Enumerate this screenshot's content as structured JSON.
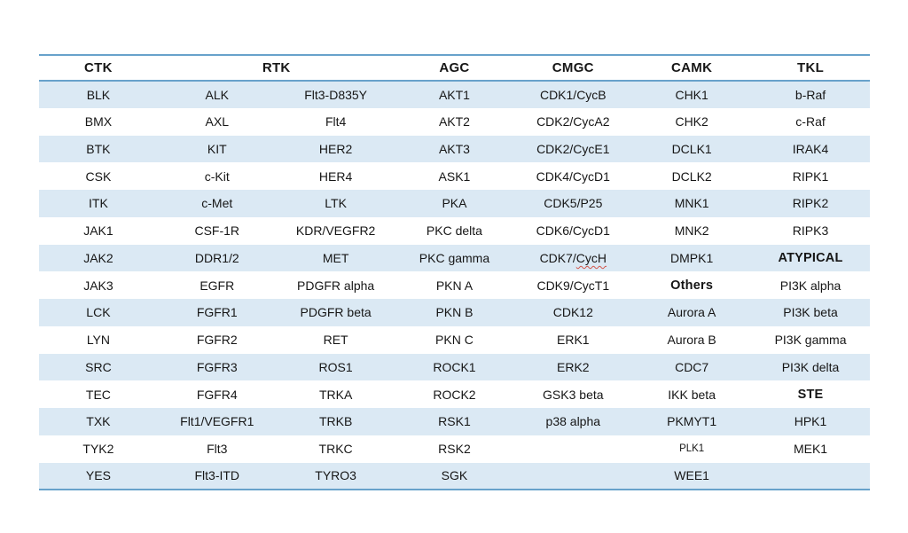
{
  "colors": {
    "background": "#FFFFFF",
    "row_stripe": "#DBE9F4",
    "rule_line": "#68A2CB",
    "text": "#161616",
    "spellcheck_red": "#D3554A"
  },
  "table": {
    "headers": [
      {
        "label": "CTK",
        "span": 1
      },
      {
        "label": "RTK",
        "span": 2
      },
      {
        "label": "AGC",
        "span": 1
      },
      {
        "label": "CMGC",
        "span": 1
      },
      {
        "label": "CAMK",
        "span": 1
      },
      {
        "label": "TKL",
        "span": 1
      }
    ],
    "rows": [
      [
        "BLK",
        "ALK",
        "Flt3-D835Y",
        "AKT1",
        "CDK1/CycB",
        "CHK1",
        "b-Raf"
      ],
      [
        "BMX",
        "AXL",
        "Flt4",
        "AKT2",
        "CDK2/CycA2",
        "CHK2",
        "c-Raf"
      ],
      [
        "BTK",
        "KIT",
        "HER2",
        "AKT3",
        "CDK2/CycE1",
        "DCLK1",
        "IRAK4"
      ],
      [
        "CSK",
        "c-Kit",
        "HER4",
        "ASK1",
        "CDK4/CycD1",
        "DCLK2",
        "RIPK1"
      ],
      [
        "ITK",
        "c-Met",
        "LTK",
        "PKA",
        "CDK5/P25",
        "MNK1",
        "RIPK2"
      ],
      [
        "JAK1",
        "CSF-1R",
        "KDR/VEGFR2",
        "PKC delta",
        "CDK6/CycD1",
        "MNK2",
        "RIPK3"
      ],
      [
        "JAK2",
        "DDR1/2",
        "MET",
        "PKC gamma",
        {
          "text": "CDK7/",
          "squiggle": "CycH"
        },
        "DMPK1",
        {
          "text": "ATYPICAL",
          "bold": true
        }
      ],
      [
        "JAK3",
        "EGFR",
        "PDGFR alpha",
        "PKN A",
        "CDK9/CycT1",
        {
          "text": "Others",
          "bold": true
        },
        "PI3K alpha"
      ],
      [
        "LCK",
        "FGFR1",
        "PDGFR beta",
        "PKN B",
        "CDK12",
        "Aurora A",
        "PI3K beta"
      ],
      [
        "LYN",
        "FGFR2",
        "RET",
        "PKN C",
        "ERK1",
        "Aurora B",
        "PI3K gamma"
      ],
      [
        "SRC",
        "FGFR3",
        "ROS1",
        "ROCK1",
        "ERK2",
        "CDC7",
        "PI3K delta"
      ],
      [
        "TEC",
        "FGFR4",
        "TRKA",
        "ROCK2",
        "GSK3 beta",
        "IKK beta",
        {
          "text": "STE",
          "bold": true
        }
      ],
      [
        "TXK",
        "Flt1/VEGFR1",
        "TRKB",
        "RSK1",
        "p38 alpha",
        "PKMYT1",
        "HPK1"
      ],
      [
        "TYK2",
        "Flt3",
        "TRKC",
        "RSK2",
        "",
        {
          "text": "PLK1",
          "small": true
        },
        "MEK1"
      ],
      [
        "YES",
        "Flt3-ITD",
        "TYRO3",
        "SGK",
        "",
        "WEE1",
        ""
      ]
    ]
  }
}
